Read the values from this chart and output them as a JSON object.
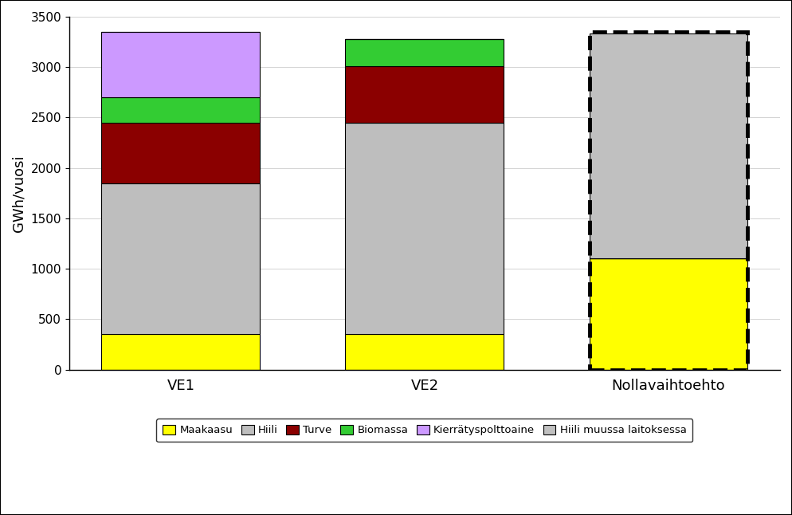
{
  "categories": [
    "VE1",
    "VE2",
    "Nollavaihtoehto"
  ],
  "bars_data": [
    {
      "label": "Maakaasu",
      "color": "#FFFF00",
      "values": [
        350,
        350,
        1100
      ]
    },
    {
      "label": "Hiili",
      "color": "#BEBEBE",
      "values": [
        1500,
        2100,
        0
      ]
    },
    {
      "label": "Turve",
      "color": "#8B0000",
      "values": [
        600,
        560,
        0
      ]
    },
    {
      "label": "Biomassa",
      "color": "#33CC33",
      "values": [
        250,
        270,
        0
      ]
    },
    {
      "label": "Kierrätyspolttoaine",
      "color": "#CC99FF",
      "values": [
        650,
        0,
        0
      ]
    },
    {
      "label": "Hiili muussa laitoksessa",
      "color": "#C0C0C0",
      "values": [
        0,
        0,
        2230
      ]
    }
  ],
  "ylabel": "GWh/vuosi",
  "ylim": [
    0,
    3500
  ],
  "yticks": [
    0,
    500,
    1000,
    1500,
    2000,
    2500,
    3000,
    3500
  ],
  "bar_width": 0.65,
  "dashed_bar_index": 2,
  "dashed_bar_total": 3350,
  "dashed_bar_bottom": 0,
  "grid": true,
  "figsize": [
    9.94,
    6.46
  ],
  "dpi": 100
}
